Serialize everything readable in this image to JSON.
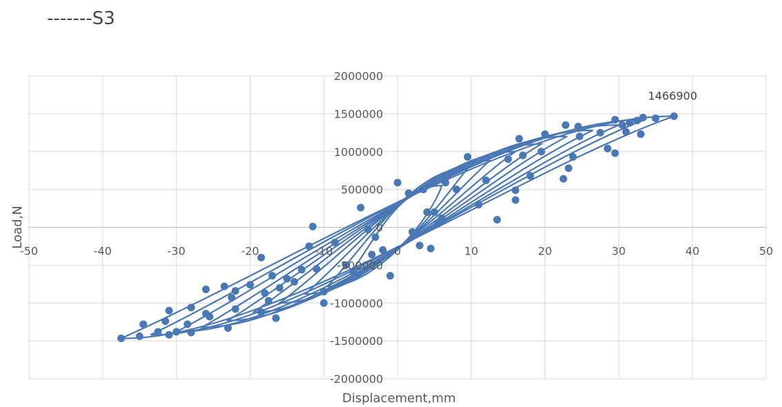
{
  "title": "-------S3",
  "chart_data": {
    "type": "scatter",
    "xlabel": "Displacement,mm",
    "ylabel": "Load,N",
    "xlim": [
      -50,
      50
    ],
    "ylim": [
      -2000000,
      2000000
    ],
    "x_ticks": [
      -50,
      -40,
      -30,
      -20,
      -10,
      0,
      10,
      20,
      30,
      40,
      50
    ],
    "y_ticks": [
      -2000000,
      -1500000,
      -1000000,
      -500000,
      0,
      500000,
      1000000,
      1500000,
      2000000
    ],
    "x_tick_labels": [
      "-50",
      "-40",
      "-30",
      "-20",
      "-10",
      "0",
      "10",
      "20",
      "30",
      "40",
      "50"
    ],
    "y_tick_labels": [
      "-2000000",
      "-1500000",
      "-1000000",
      "-500000",
      "0",
      "500000",
      "1000000",
      "1500000",
      "2000000"
    ],
    "grid": true,
    "series_color": "#4a78b5",
    "markers": true,
    "annotations": [
      {
        "text": "1466900",
        "x": 37.5,
        "y": 1466900
      }
    ],
    "loops": [
      {
        "pos": [
          6.0,
          550000
        ],
        "neg": [
          -6.0,
          -550000
        ]
      },
      {
        "pos": [
          9.5,
          780000
        ],
        "neg": [
          -9.5,
          -780000
        ]
      },
      {
        "pos": [
          12.5,
          880000
        ],
        "neg": [
          -12.5,
          -880000
        ]
      },
      {
        "pos": [
          16.0,
          1000000
        ],
        "neg": [
          -16.0,
          -1000000
        ]
      },
      {
        "pos": [
          19.5,
          1100000
        ],
        "neg": [
          -19.5,
          -1120000
        ]
      },
      {
        "pos": [
          23.0,
          1200000
        ],
        "neg": [
          -23.0,
          -1230000
        ]
      },
      {
        "pos": [
          26.5,
          1280000
        ],
        "neg": [
          -26.5,
          -1320000
        ]
      },
      {
        "pos": [
          30.0,
          1350000
        ],
        "neg": [
          -30.0,
          -1380000
        ]
      },
      {
        "pos": [
          33.5,
          1420000
        ],
        "neg": [
          -33.5,
          -1420000
        ]
      },
      {
        "pos": [
          37.5,
          1466900
        ],
        "neg": [
          -37.5,
          -1466900
        ]
      }
    ],
    "points": [
      [
        37.5,
        1466900
      ],
      [
        35.0,
        1440000
      ],
      [
        33.3,
        1450000
      ],
      [
        32.5,
        1410000
      ],
      [
        31.5,
        1380000
      ],
      [
        30.5,
        1350000
      ],
      [
        29.5,
        1420000
      ],
      [
        33.0,
        1230000
      ],
      [
        31.0,
        1260000
      ],
      [
        29.5,
        980000
      ],
      [
        28.5,
        1040000
      ],
      [
        27.5,
        1250000
      ],
      [
        24.5,
        1330000
      ],
      [
        22.8,
        1350000
      ],
      [
        24.7,
        1200000
      ],
      [
        23.8,
        930000
      ],
      [
        23.2,
        780000
      ],
      [
        22.5,
        640000
      ],
      [
        20.0,
        1230000
      ],
      [
        19.5,
        1000000
      ],
      [
        18.0,
        680000
      ],
      [
        17.0,
        950000
      ],
      [
        16.5,
        1170000
      ],
      [
        16.0,
        490000
      ],
      [
        16.0,
        360000
      ],
      [
        15.0,
        900000
      ],
      [
        13.5,
        100000
      ],
      [
        12.0,
        620000
      ],
      [
        11.0,
        300000
      ],
      [
        9.5,
        930000
      ],
      [
        8.0,
        500000
      ],
      [
        6.5,
        590000
      ],
      [
        6.0,
        120000
      ],
      [
        5.5,
        50000
      ],
      [
        5.0,
        200000
      ],
      [
        4.5,
        -280000
      ],
      [
        4.0,
        200000
      ],
      [
        3.5,
        500000
      ],
      [
        3.0,
        -240000
      ],
      [
        2.0,
        -60000
      ],
      [
        1.5,
        450000
      ],
      [
        0.0,
        590000
      ],
      [
        -1.0,
        -640000
      ],
      [
        -2.0,
        -300000
      ],
      [
        -3.0,
        -130000
      ],
      [
        -3.5,
        -360000
      ],
      [
        -4.0,
        -30000
      ],
      [
        -5.0,
        260000
      ],
      [
        -6.0,
        -600000
      ],
      [
        -7.0,
        -500000
      ],
      [
        -8.5,
        -200000
      ],
      [
        -10.0,
        -1000000
      ],
      [
        -10.0,
        -850000
      ],
      [
        -11.0,
        -550000
      ],
      [
        -11.5,
        10000
      ],
      [
        -12.0,
        -250000
      ],
      [
        -13.0,
        -560000
      ],
      [
        -14.0,
        -720000
      ],
      [
        -15.0,
        -680000
      ],
      [
        -16.0,
        -800000
      ],
      [
        -16.5,
        -1200000
      ],
      [
        -17.0,
        -640000
      ],
      [
        -17.5,
        -970000
      ],
      [
        -18.0,
        -870000
      ],
      [
        -18.5,
        -1120000
      ],
      [
        -18.5,
        -400000
      ],
      [
        -20.0,
        -760000
      ],
      [
        -22.0,
        -1080000
      ],
      [
        -22.5,
        -930000
      ],
      [
        -22.0,
        -840000
      ],
      [
        -23.0,
        -1330000
      ],
      [
        -23.5,
        -780000
      ],
      [
        -25.5,
        -1180000
      ],
      [
        -26.0,
        -1140000
      ],
      [
        -26.0,
        -820000
      ],
      [
        -28.0,
        -1060000
      ],
      [
        -28.5,
        -1280000
      ],
      [
        -28.0,
        -1390000
      ],
      [
        -30.0,
        -1380000
      ],
      [
        -31.0,
        -1100000
      ],
      [
        -31.5,
        -1240000
      ],
      [
        -32.5,
        -1380000
      ],
      [
        -34.5,
        -1280000
      ],
      [
        -35.0,
        -1440000
      ],
      [
        -31.0,
        -1420000
      ],
      [
        -37.5,
        -1466900
      ]
    ]
  }
}
